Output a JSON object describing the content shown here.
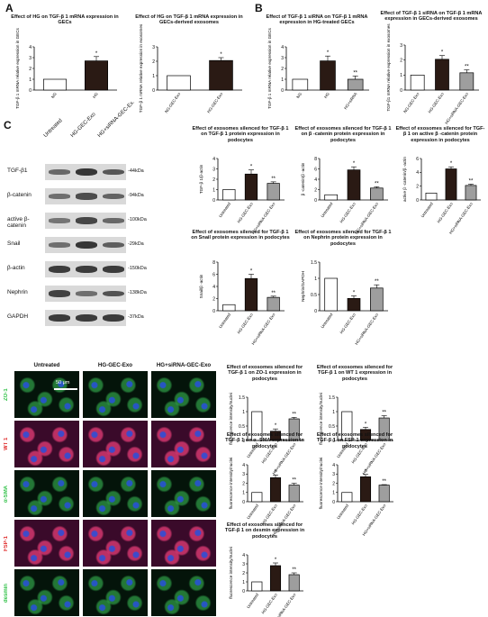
{
  "panels": {
    "A": "A",
    "B": "B",
    "C": "C"
  },
  "blot": {
    "lanes": [
      "Untreated",
      "HG-GEC-Exo",
      "HG+siRNA-GEC-Ex."
    ],
    "rows": [
      {
        "label": "TGF-β1",
        "kda": "-44kDa",
        "bands": [
          0.45,
          0.9,
          0.6
        ]
      },
      {
        "label": "β-catenin",
        "kda": "-94kDa",
        "bands": [
          0.4,
          0.7,
          0.5
        ]
      },
      {
        "label": "active β-catenin",
        "kda": "-100kDa",
        "bands": [
          0.35,
          0.75,
          0.45
        ]
      },
      {
        "label": "Snail",
        "kda": "-29kDa",
        "bands": [
          0.4,
          0.9,
          0.55
        ]
      },
      {
        "label": "β-actin",
        "kda": "-150kDa",
        "bands": [
          0.85,
          0.85,
          0.85
        ]
      },
      {
        "label": "Nephrin",
        "kda": "-138kDa",
        "bands": [
          0.8,
          0.4,
          0.65
        ]
      },
      {
        "label": "GAPDH",
        "kda": "-37kDa",
        "bands": [
          0.85,
          0.85,
          0.85
        ]
      }
    ]
  },
  "micro": {
    "cols": [
      "Untreated",
      "HG-GEC-Exo",
      "HG+siRNA-GEC-Exo"
    ],
    "rows": [
      "ZO-1",
      "WT 1",
      "α-SMA",
      "FSP-1",
      "desmin"
    ],
    "row_colors": [
      "#33c24a",
      "#e03030",
      "#33c24a",
      "#e03030",
      "#33c24a"
    ],
    "scale_label": "50 μm"
  },
  "chart_data": [
    {
      "id": "a1",
      "type": "bar",
      "title": "Effect  of HG on TGF-β 1 mRNA expression in GECs",
      "categories": [
        "NG",
        "HG"
      ],
      "values": [
        1.0,
        2.7
      ],
      "errors": [
        0,
        0.4
      ],
      "stars": [
        "",
        "*"
      ],
      "ylim": [
        0,
        4
      ],
      "yticks": [
        0,
        1,
        2,
        3,
        4
      ],
      "ylabel": "TGF-β 1 mRNA relative expression in GECs",
      "fills": [
        "#ffffff",
        "#2a1a14"
      ]
    },
    {
      "id": "a2",
      "type": "bar",
      "title": "Effect  of HG on TGF-β 1 mRNA expression in GECs-derived exosomes",
      "categories": [
        "NG-GEC-Exo",
        "HG-GEC-Exo"
      ],
      "values": [
        1.0,
        2.05
      ],
      "errors": [
        0,
        0.2
      ],
      "stars": [
        "",
        "*"
      ],
      "ylim": [
        0,
        3
      ],
      "yticks": [
        0,
        1,
        2,
        3
      ],
      "ylabel": "TGF-β 1 mRNA relative expression in exosomes",
      "fills": [
        "#ffffff",
        "#2a1a14"
      ]
    },
    {
      "id": "b1",
      "type": "bar",
      "title": "Effect  of TGF-β 1 siRNA  on  TGF-β 1 mRNA expression in HG-treated GECs",
      "categories": [
        "NG",
        "HG",
        "HG+siRNA"
      ],
      "values": [
        1.0,
        2.7,
        1.0
      ],
      "errors": [
        0,
        0.45,
        0.3
      ],
      "stars": [
        "",
        "*",
        "**"
      ],
      "ylim": [
        0,
        4
      ],
      "yticks": [
        0,
        1,
        2,
        3,
        4
      ],
      "ylabel": "TGF-β 1 mRNA relative expression in GECs",
      "fills": [
        "#ffffff",
        "#2a1a14",
        "#9e9e9e"
      ]
    },
    {
      "id": "b2",
      "type": "bar",
      "title": "Effect  of TGF-β 1 siRNA on TGF-β 1 mRNA expression in  GECs-derived exosomes",
      "categories": [
        "NG-GEC-Exo",
        "HG-GEC-Exo",
        "HG+siRNA-GEC-Exo"
      ],
      "values": [
        1.0,
        2.05,
        1.15
      ],
      "errors": [
        0,
        0.25,
        0.2
      ],
      "stars": [
        "",
        "*",
        "**"
      ],
      "ylim": [
        0,
        3
      ],
      "yticks": [
        0,
        1,
        2,
        3
      ],
      "ylabel": "TGF-β1 mRNA relative expression in exosomes",
      "fills": [
        "#ffffff",
        "#2a1a14",
        "#9e9e9e"
      ]
    },
    {
      "id": "c1",
      "type": "bar",
      "title": "Effect of exosomes silenced for TGF-β 1 on TGF-β 1 protein expression in podocytes",
      "categories": [
        "Untreated",
        "HG-GEC-Exo",
        "HG+siRNA-GEC-Exo"
      ],
      "values": [
        1.0,
        2.5,
        1.6
      ],
      "errors": [
        0,
        0.4,
        0.15
      ],
      "stars": [
        "",
        "*",
        "**"
      ],
      "ylim": [
        0,
        4
      ],
      "yticks": [
        0,
        1,
        2,
        3,
        4
      ],
      "ylabel": "TGF-β 1/β-actin",
      "fills": [
        "#ffffff",
        "#2a1a14",
        "#9e9e9e"
      ]
    },
    {
      "id": "c2",
      "type": "bar",
      "title": "Effect of exosomes silenced for TGF-β 1 on β -catenin protein expression in podocytes",
      "categories": [
        "Untreated",
        "HG-GEC-Exo",
        "HG+siRNA-GEC-Exo"
      ],
      "values": [
        1.0,
        5.8,
        2.3
      ],
      "errors": [
        0,
        0.6,
        0.25
      ],
      "stars": [
        "",
        "*",
        "**"
      ],
      "ylim": [
        0,
        8
      ],
      "yticks": [
        0,
        2,
        4,
        6,
        8
      ],
      "ylabel": "β -catenin/β -actin",
      "fills": [
        "#ffffff",
        "#2a1a14",
        "#9e9e9e"
      ]
    },
    {
      "id": "c3",
      "type": "bar",
      "title": "Effect of exosomes silenced for TGF-β 1 on active β -catenin protein expression in podocytes",
      "categories": [
        "Untreated",
        "HG-GEC-Exo",
        "HG+siRNA-GEC-Exo"
      ],
      "values": [
        1.0,
        4.5,
        2.1
      ],
      "errors": [
        0,
        0.3,
        0.2
      ],
      "stars": [
        "",
        "*",
        "**"
      ],
      "ylim": [
        0,
        6
      ],
      "yticks": [
        0,
        2,
        4,
        6
      ],
      "ylabel": "active β -catenin/β -actin",
      "fills": [
        "#ffffff",
        "#2a1a14",
        "#9e9e9e"
      ]
    },
    {
      "id": "c4",
      "type": "bar",
      "title": "Effect of exosomes silenced for TGF-β 1 on Snail protein expression in podocytes",
      "categories": [
        "Untreated",
        "HG-GEC-Exo",
        "HG+siRNA-GEC-Exo"
      ],
      "values": [
        1.0,
        5.3,
        2.2
      ],
      "errors": [
        0,
        0.7,
        0.2
      ],
      "stars": [
        "",
        "*",
        "**"
      ],
      "ylim": [
        0,
        8
      ],
      "yticks": [
        0,
        2,
        4,
        6,
        8
      ],
      "ylabel": "Snail/β -actin",
      "fills": [
        "#ffffff",
        "#2a1a14",
        "#9e9e9e"
      ]
    },
    {
      "id": "c5",
      "type": "bar",
      "title": "Effect of exosomes silenced for TGF-β 1 on Nephrin protein expression in podocytes",
      "categories": [
        "Untreated",
        "HG-GEC-Exo",
        "HG+siRNA-GEC-Exo"
      ],
      "values": [
        1.0,
        0.38,
        0.7
      ],
      "errors": [
        0,
        0.08,
        0.1
      ],
      "stars": [
        "",
        "*",
        "**"
      ],
      "ylim": [
        0,
        1.5
      ],
      "yticks": [
        0,
        0.5,
        1.0,
        1.5
      ],
      "ylabel": "Nephrin/GAPDH",
      "fills": [
        "#ffffff",
        "#2a1a14",
        "#9e9e9e"
      ]
    },
    {
      "id": "d1",
      "type": "bar",
      "title": "Effect of exosomes silenced for TGF-β 1 on ZO-1 expression in podocytes",
      "categories": [
        "Untreated",
        "HG-GEC-Exo",
        "HG+siRNA-GEC-Exo"
      ],
      "values": [
        1.0,
        0.32,
        0.75
      ],
      "errors": [
        0,
        0.08,
        0.05
      ],
      "stars": [
        "",
        "*",
        "**"
      ],
      "ylim": [
        0,
        1.5
      ],
      "yticks": [
        0,
        0.5,
        1.0,
        1.5
      ],
      "ylabel": "fluorescence intensity/nuclei",
      "fills": [
        "#ffffff",
        "#2a1a14",
        "#9e9e9e"
      ]
    },
    {
      "id": "d2",
      "type": "bar",
      "title": "Effect of exosomes silenced for TGF-β 1 on WT 1 expression in podocytes",
      "categories": [
        "Untreated",
        "HG-GEC-Exo",
        "HG+siRNA-GEC-Exo"
      ],
      "values": [
        1.0,
        0.38,
        0.78
      ],
      "errors": [
        0,
        0.08,
        0.08
      ],
      "stars": [
        "",
        "*",
        "**"
      ],
      "ylim": [
        0,
        1.5
      ],
      "yticks": [
        0,
        0.5,
        1.0,
        1.5
      ],
      "ylabel": "fluorescence intensity/nuclei",
      "fills": [
        "#ffffff",
        "#2a1a14",
        "#9e9e9e"
      ]
    },
    {
      "id": "d3",
      "type": "bar",
      "title": "Effect of exosomes silenced for TGF-β 1 on α -SMA expression in podocytes",
      "categories": [
        "Untreated",
        "HG-GEC-Exo",
        "HG+siRNA-GEC-Exo"
      ],
      "values": [
        1.0,
        2.6,
        1.8
      ],
      "errors": [
        0,
        0.3,
        0.2
      ],
      "stars": [
        "",
        "*",
        "**"
      ],
      "ylim": [
        0,
        4
      ],
      "yticks": [
        0,
        1,
        2,
        3,
        4
      ],
      "ylabel": "fluorescence intensity/nuclei",
      "fills": [
        "#ffffff",
        "#2a1a14",
        "#9e9e9e"
      ]
    },
    {
      "id": "d4",
      "type": "bar",
      "title": "Effect of exosomes silenced for TGF-β 1 on FSP-1 expression in podocytes",
      "categories": [
        "Untreated",
        "HG-GEC-Exo",
        "HG+siRNA-GEC-Exo"
      ],
      "values": [
        1.0,
        2.7,
        1.8
      ],
      "errors": [
        0,
        0.25,
        0.05
      ],
      "stars": [
        "",
        "*",
        "**"
      ],
      "ylim": [
        0,
        4
      ],
      "yticks": [
        0,
        1,
        2,
        3,
        4
      ],
      "ylabel": "fluorescence intensity/nuclei",
      "fills": [
        "#ffffff",
        "#2a1a14",
        "#9e9e9e"
      ]
    },
    {
      "id": "d5",
      "type": "bar",
      "title": "Effect of exosomes silenced for TGF-β 1 on desmin expression in podocytes",
      "categories": [
        "Untreated",
        "HG-GEC-Exo",
        "HG+siRNA-GEC-Exo"
      ],
      "values": [
        1.0,
        2.8,
        1.8
      ],
      "errors": [
        0,
        0.3,
        0.2
      ],
      "stars": [
        "",
        "*",
        "**"
      ],
      "ylim": [
        0,
        4
      ],
      "yticks": [
        0,
        1,
        2,
        3,
        4
      ],
      "ylabel": "fluorescence intensity/nuclei",
      "fills": [
        "#ffffff",
        "#2a1a14",
        "#9e9e9e"
      ]
    }
  ]
}
